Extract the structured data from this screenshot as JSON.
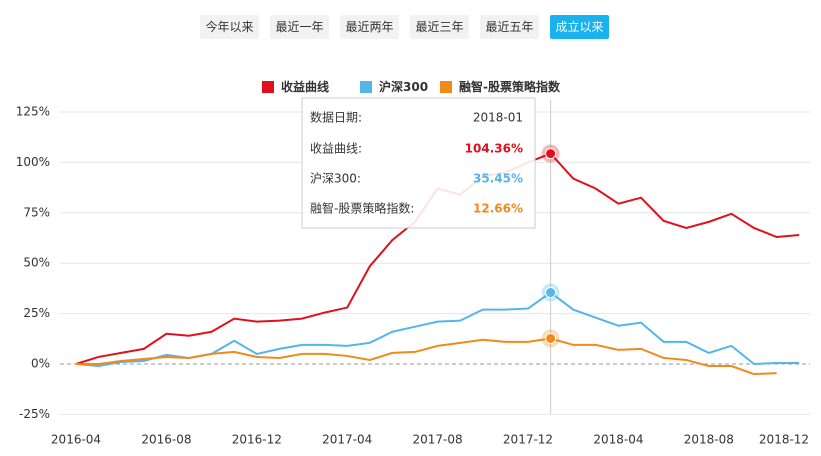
{
  "buttons": [
    {
      "label": "今年以来",
      "active": false
    },
    {
      "label": "最近一年",
      "active": false
    },
    {
      "label": "最近两年",
      "active": false
    },
    {
      "label": "最近三年",
      "active": false
    },
    {
      "label": "最近五年",
      "active": false
    },
    {
      "label": "成立以来",
      "active": true
    }
  ],
  "chart_data": {
    "type": "line",
    "categories": [
      "2016-04",
      null,
      null,
      null,
      "2016-08",
      null,
      null,
      null,
      "2016-12",
      null,
      null,
      null,
      "2017-04",
      null,
      null,
      null,
      "2017-08",
      null,
      null,
      null,
      "2017-12",
      null,
      null,
      null,
      "2018-04",
      null,
      null,
      null,
      "2018-08",
      null,
      null,
      null,
      "2018-12"
    ],
    "series": [
      {
        "name": "收益曲线",
        "color": "#e0101d",
        "values": [
          0,
          3.5,
          5.5,
          7.5,
          15,
          14,
          16,
          22.5,
          21,
          21.5,
          22.5,
          25.5,
          28,
          48.5,
          61.5,
          70.5,
          87,
          84,
          93,
          95,
          100,
          104.36,
          92,
          87,
          79.5,
          82.5,
          71,
          67.5,
          70.5,
          74.5,
          67.5,
          63,
          64
        ]
      },
      {
        "name": "沪深300",
        "color": "#54b5e8",
        "values": [
          0,
          -1,
          1,
          1.5,
          4.5,
          3,
          5,
          11.5,
          5,
          7.5,
          9.5,
          9.5,
          9,
          10.5,
          16,
          18.5,
          21,
          21.5,
          27,
          27,
          27.5,
          35.45,
          27,
          23,
          19,
          20.5,
          11,
          11,
          5.5,
          9,
          0,
          0.5,
          0.5
        ]
      },
      {
        "name": "融智-股票策略指数",
        "color": "#f08a1a",
        "values": [
          0,
          0,
          1.5,
          2.5,
          3.5,
          3,
          5,
          6,
          3.5,
          3,
          5,
          5,
          4,
          2,
          5.5,
          6,
          9,
          10.5,
          12,
          11,
          11,
          12.66,
          9.5,
          9.5,
          7,
          7.5,
          3,
          2,
          -1,
          -1,
          -5,
          -4.5,
          null
        ]
      }
    ],
    "ylim": [
      -25,
      125
    ],
    "yticks": [
      {
        "value": -25,
        "label": "-25%"
      },
      {
        "value": 0,
        "label": "0%"
      },
      {
        "value": 25,
        "label": "25%"
      },
      {
        "value": 50,
        "label": "50%"
      },
      {
        "value": 75,
        "label": "75%"
      },
      {
        "value": 100,
        "label": "100%"
      },
      {
        "value": 125,
        "label": "125%"
      }
    ],
    "grid": true,
    "tooltip": {
      "date_label": "数据日期:",
      "date": "2018-01",
      "highlight_index": 21,
      "items": [
        {
          "label": "收益曲线:",
          "value": "104.36%"
        },
        {
          "label": "沪深300:",
          "value": "35.45%"
        },
        {
          "label": "融智-股票策略指数:",
          "value": "12.66%"
        }
      ]
    }
  }
}
